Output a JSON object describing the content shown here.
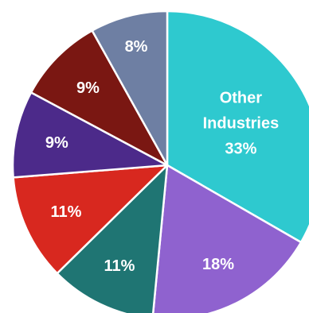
{
  "chart_data": {
    "type": "pie",
    "slices": [
      {
        "label_lines": [
          "Other",
          "Industries",
          "33%"
        ],
        "value": 33,
        "color": "#2ec9cf"
      },
      {
        "label_lines": [
          "18%"
        ],
        "value": 18,
        "color": "#8f62cf"
      },
      {
        "label_lines": [
          "11%"
        ],
        "value": 11,
        "color": "#1f7573"
      },
      {
        "label_lines": [
          "11%"
        ],
        "value": 11,
        "color": "#d8281f"
      },
      {
        "label_lines": [
          "9%"
        ],
        "value": 9,
        "color": "#4c2a8a"
      },
      {
        "label_lines": [
          "9%"
        ],
        "value": 9,
        "color": "#7a1712"
      },
      {
        "label_lines": [
          "8%"
        ],
        "value": 8,
        "color": "#6e7fa3"
      }
    ]
  }
}
